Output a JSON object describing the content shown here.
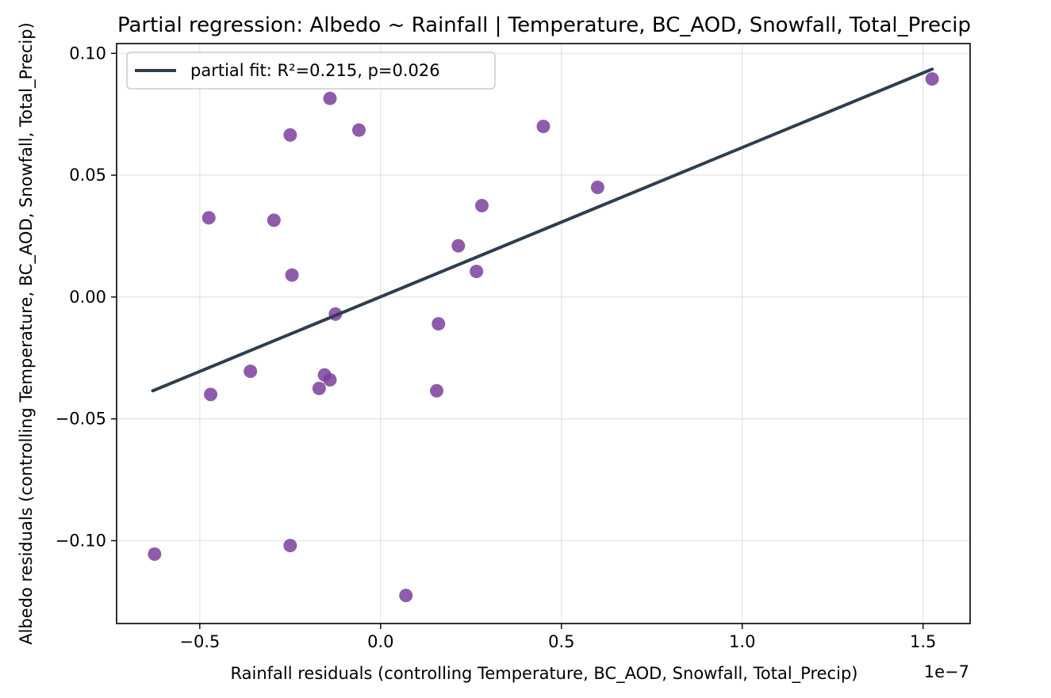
{
  "chart_data": {
    "type": "scatter",
    "title": "Partial regression: Albedo ~ Rainfall | Temperature, BC_AOD, Snowfall, Total_Precip",
    "xlabel": "Rainfall residuals (controlling Temperature, BC_AOD, Snowfall, Total_Precip)",
    "ylabel": "Albedo residuals (controlling Temperature, BC_AOD, Snowfall, Total_Precip)",
    "x_offset_text": "1e−7",
    "x_scale_exponent": -7,
    "xlim": [
      -0.73,
      1.63
    ],
    "ylim": [
      -0.134,
      0.104
    ],
    "xticks": [
      -0.5,
      0.0,
      0.5,
      1.0,
      1.5
    ],
    "xtick_labels": [
      "−0.5",
      "0.0",
      "0.5",
      "1.0",
      "1.5"
    ],
    "yticks": [
      -0.1,
      -0.05,
      0.0,
      0.05,
      0.1
    ],
    "ytick_labels": [
      "−0.10",
      "−0.05",
      "0.00",
      "0.05",
      "0.10"
    ],
    "grid": true,
    "legend_position": "top-left",
    "point_color": "#7b3f9e",
    "line_color": "#2e3e50",
    "series": [
      {
        "points": [
          {
            "x": -0.625,
            "y": -0.1055
          },
          {
            "x": -0.475,
            "y": 0.0325
          },
          {
            "x": -0.47,
            "y": -0.04
          },
          {
            "x": -0.36,
            "y": -0.0305
          },
          {
            "x": -0.295,
            "y": 0.0315
          },
          {
            "x": -0.25,
            "y": 0.0665
          },
          {
            "x": -0.245,
            "y": 0.009
          },
          {
            "x": -0.25,
            "y": -0.102
          },
          {
            "x": -0.17,
            "y": -0.0375
          },
          {
            "x": -0.155,
            "y": -0.032
          },
          {
            "x": -0.14,
            "y": -0.034
          },
          {
            "x": -0.14,
            "y": 0.0815
          },
          {
            "x": -0.125,
            "y": -0.007
          },
          {
            "x": -0.06,
            "y": 0.0685
          },
          {
            "x": 0.07,
            "y": -0.1225
          },
          {
            "x": 0.155,
            "y": -0.0385
          },
          {
            "x": 0.16,
            "y": -0.011
          },
          {
            "x": 0.215,
            "y": 0.021
          },
          {
            "x": 0.265,
            "y": 0.0105
          },
          {
            "x": 0.28,
            "y": 0.0375
          },
          {
            "x": 0.45,
            "y": 0.07
          },
          {
            "x": 0.6,
            "y": 0.045
          },
          {
            "x": 1.525,
            "y": 0.0895
          }
        ]
      },
      {
        "name": "partial fit: R²=0.215, p=0.026",
        "kind": "line",
        "points": [
          {
            "x": -0.63,
            "y": -0.0385
          },
          {
            "x": 1.525,
            "y": 0.0935
          }
        ]
      }
    ]
  }
}
